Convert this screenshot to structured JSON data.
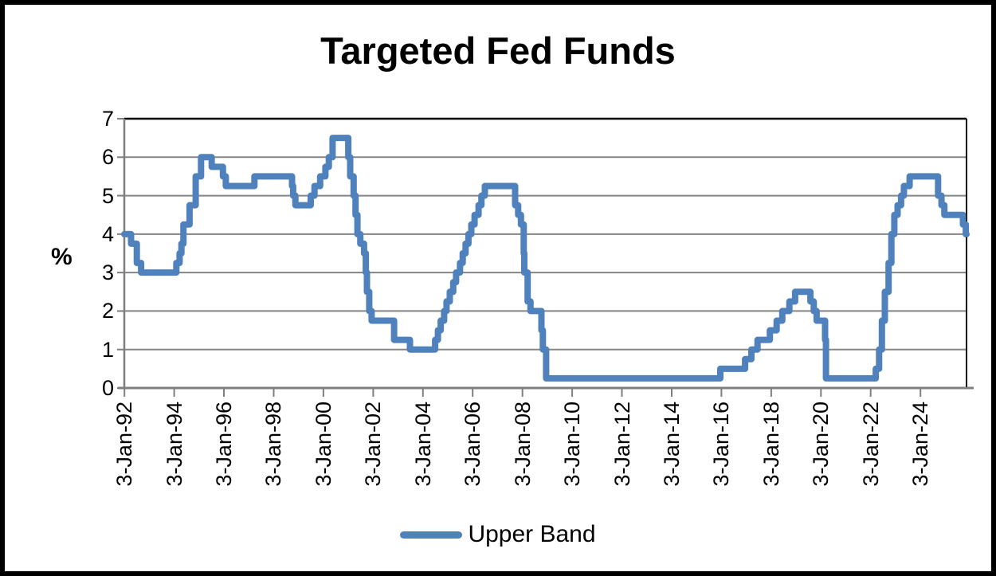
{
  "title": "Targeted Fed Funds",
  "legend": {
    "items": [
      {
        "label": "Upper Band",
        "color": "#4F81BD"
      }
    ]
  },
  "chart_data": {
    "type": "line",
    "title": "Targeted Fed Funds",
    "xlabel": "",
    "ylabel": "%",
    "ylim": [
      0,
      7
    ],
    "grid": true,
    "legend_position": "bottom",
    "y_tick_labels": [
      "0",
      "1",
      "2",
      "3",
      "4",
      "5",
      "6",
      "7"
    ],
    "x_domain": [
      "1992-01-01",
      "2025-11-10"
    ],
    "x_ticks": [
      "1992-01-03",
      "1994-01-03",
      "1996-01-03",
      "1998-01-03",
      "2000-01-03",
      "2002-01-03",
      "2004-01-03",
      "2006-01-03",
      "2008-01-03",
      "2010-01-03",
      "2012-01-03",
      "2014-01-03",
      "2016-01-03",
      "2018-01-03",
      "2020-01-03",
      "2022-01-03",
      "2024-01-03"
    ],
    "x_tick_labels": [
      "3-Jan-92",
      "3-Jan-94",
      "3-Jan-96",
      "3-Jan-98",
      "3-Jan-00",
      "3-Jan-02",
      "3-Jan-04",
      "3-Jan-06",
      "3-Jan-08",
      "3-Jan-10",
      "3-Jan-12",
      "3-Jan-14",
      "3-Jan-16",
      "3-Jan-18",
      "3-Jan-20",
      "3-Jan-22",
      "3-Jan-24"
    ],
    "colors": {
      "line": "#4F81BD",
      "grid": "#858585",
      "axis": "#7F7F7F",
      "border": "#000000",
      "text": "#000000"
    },
    "series": [
      {
        "name": "Upper Band",
        "color": "#4F81BD",
        "steps": [
          [
            "1992-01-01",
            4.0
          ],
          [
            "1992-04-09",
            3.75
          ],
          [
            "1992-07-02",
            3.25
          ],
          [
            "1992-09-04",
            3.0
          ],
          [
            "1994-02-04",
            3.25
          ],
          [
            "1994-03-22",
            3.5
          ],
          [
            "1994-04-18",
            3.75
          ],
          [
            "1994-05-17",
            4.25
          ],
          [
            "1994-08-16",
            4.75
          ],
          [
            "1994-11-15",
            5.5
          ],
          [
            "1995-02-01",
            6.0
          ],
          [
            "1995-07-06",
            5.75
          ],
          [
            "1995-12-19",
            5.5
          ],
          [
            "1996-01-31",
            5.25
          ],
          [
            "1997-03-25",
            5.5
          ],
          [
            "1998-09-29",
            5.25
          ],
          [
            "1998-10-15",
            5.0
          ],
          [
            "1998-11-17",
            4.75
          ],
          [
            "1999-06-30",
            5.0
          ],
          [
            "1999-08-24",
            5.25
          ],
          [
            "1999-11-16",
            5.5
          ],
          [
            "2000-02-02",
            5.75
          ],
          [
            "2000-03-21",
            6.0
          ],
          [
            "2000-05-16",
            6.5
          ],
          [
            "2001-01-03",
            6.0
          ],
          [
            "2001-01-31",
            5.5
          ],
          [
            "2001-03-20",
            5.0
          ],
          [
            "2001-04-18",
            4.5
          ],
          [
            "2001-05-15",
            4.0
          ],
          [
            "2001-06-27",
            3.75
          ],
          [
            "2001-08-21",
            3.5
          ],
          [
            "2001-09-17",
            3.0
          ],
          [
            "2001-10-02",
            2.5
          ],
          [
            "2001-11-06",
            2.0
          ],
          [
            "2001-12-11",
            1.75
          ],
          [
            "2002-11-06",
            1.25
          ],
          [
            "2003-06-25",
            1.0
          ],
          [
            "2004-06-30",
            1.25
          ],
          [
            "2004-08-10",
            1.5
          ],
          [
            "2004-09-21",
            1.75
          ],
          [
            "2004-11-10",
            2.0
          ],
          [
            "2004-12-14",
            2.25
          ],
          [
            "2005-02-02",
            2.5
          ],
          [
            "2005-03-22",
            2.75
          ],
          [
            "2005-05-03",
            3.0
          ],
          [
            "2005-06-30",
            3.25
          ],
          [
            "2005-08-09",
            3.5
          ],
          [
            "2005-09-20",
            3.75
          ],
          [
            "2005-11-01",
            4.0
          ],
          [
            "2005-12-13",
            4.25
          ],
          [
            "2006-01-31",
            4.5
          ],
          [
            "2006-03-28",
            4.75
          ],
          [
            "2006-05-10",
            5.0
          ],
          [
            "2006-06-29",
            5.25
          ],
          [
            "2007-09-18",
            4.75
          ],
          [
            "2007-10-31",
            4.5
          ],
          [
            "2007-12-11",
            4.25
          ],
          [
            "2008-01-22",
            3.5
          ],
          [
            "2008-01-30",
            3.0
          ],
          [
            "2008-03-18",
            2.25
          ],
          [
            "2008-04-30",
            2.0
          ],
          [
            "2008-10-08",
            1.5
          ],
          [
            "2008-10-29",
            1.0
          ],
          [
            "2008-12-16",
            0.25
          ],
          [
            "2015-12-17",
            0.5
          ],
          [
            "2016-12-15",
            0.75
          ],
          [
            "2017-03-16",
            1.0
          ],
          [
            "2017-06-15",
            1.25
          ],
          [
            "2017-12-14",
            1.5
          ],
          [
            "2018-03-22",
            1.75
          ],
          [
            "2018-06-14",
            2.0
          ],
          [
            "2018-09-27",
            2.25
          ],
          [
            "2018-12-20",
            2.5
          ],
          [
            "2019-08-01",
            2.25
          ],
          [
            "2019-09-19",
            2.0
          ],
          [
            "2019-10-31",
            1.75
          ],
          [
            "2020-03-03",
            1.25
          ],
          [
            "2020-03-16",
            0.25
          ],
          [
            "2022-03-17",
            0.5
          ],
          [
            "2022-05-05",
            1.0
          ],
          [
            "2022-06-16",
            1.75
          ],
          [
            "2022-07-28",
            2.5
          ],
          [
            "2022-09-22",
            3.25
          ],
          [
            "2022-11-03",
            4.0
          ],
          [
            "2022-12-15",
            4.5
          ],
          [
            "2023-02-02",
            4.75
          ],
          [
            "2023-03-23",
            5.0
          ],
          [
            "2023-05-04",
            5.25
          ],
          [
            "2023-07-27",
            5.5
          ],
          [
            "2024-09-19",
            5.0
          ],
          [
            "2024-11-08",
            4.75
          ],
          [
            "2024-12-19",
            4.5
          ],
          [
            "2025-09-18",
            4.25
          ],
          [
            "2025-10-30",
            4.0
          ]
        ]
      }
    ]
  }
}
